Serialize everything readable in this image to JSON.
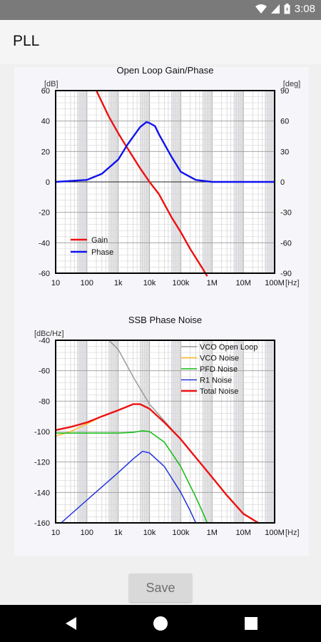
{
  "status_bar": {
    "time": "3:08",
    "icons": [
      "wifi-icon",
      "signal-icon",
      "battery-icon"
    ]
  },
  "app": {
    "title": "PLL"
  },
  "save_label": "Save",
  "nav_bar": {
    "icons": [
      "back-icon",
      "home-icon",
      "recents-icon"
    ]
  },
  "colors": {
    "gain": "#ee1111",
    "phase": "#1111ee",
    "vco_open_loop": "#999999",
    "vco_noise": "#ffbb22",
    "pfd_noise": "#11bb11",
    "r1_noise": "#2233dd",
    "total_noise": "#ee1111"
  },
  "chart_data": [
    {
      "type": "line",
      "title": "Open Loop Gain/Phase",
      "ylabel": "[dB]",
      "y2label": "[deg]",
      "xunit": "[Hz]",
      "xscale": "log",
      "xlim": [
        10,
        100000000
      ],
      "ylim": [
        -60,
        60
      ],
      "y2lim": [
        -90,
        90
      ],
      "x_ticks": [
        "10",
        "100",
        "1k",
        "10k",
        "100k",
        "1M",
        "10M",
        "100M"
      ],
      "y_ticks": [
        "60",
        "40",
        "20",
        "0",
        "-20",
        "-40",
        "-60"
      ],
      "y2_ticks": [
        "90",
        "60",
        "30",
        "0",
        "-30",
        "-60",
        "-90"
      ],
      "grid": true,
      "legend": "bottom-left",
      "series": [
        {
          "name": "Gain",
          "axis": "left",
          "x": [
            200,
            500,
            1000,
            2000,
            5000,
            10000,
            20000,
            50000,
            100000,
            200000,
            500000,
            700000
          ],
          "y": [
            60,
            43,
            32,
            22,
            9,
            0,
            -8,
            -23,
            -33,
            -44,
            -57,
            -62
          ]
        },
        {
          "name": "Phase",
          "axis": "right",
          "x": [
            10,
            100,
            300,
            1000,
            2000,
            5000,
            8000,
            10000,
            15000,
            20000,
            50000,
            100000,
            300000,
            1000000,
            100000000
          ],
          "y": [
            0,
            2,
            8,
            22,
            37,
            54,
            59,
            58,
            55,
            47,
            25,
            10,
            2,
            0,
            0
          ]
        }
      ]
    },
    {
      "type": "line",
      "title": "SSB Phase Noise",
      "ylabel": "[dBc/Hz]",
      "xunit": "[Hz]",
      "xscale": "log",
      "xlim": [
        10,
        100000000
      ],
      "ylim": [
        -160,
        -40
      ],
      "x_ticks": [
        "10",
        "100",
        "1k",
        "10k",
        "100k",
        "1M",
        "10M",
        "100M"
      ],
      "y_ticks": [
        "-40",
        "-60",
        "-80",
        "-100",
        "-120",
        "-140",
        "-160"
      ],
      "grid": true,
      "legend": "top-right",
      "series": [
        {
          "name": "VCO Open Loop",
          "x": [
            500,
            1000,
            3000,
            10000,
            30000,
            100000,
            300000,
            1000000,
            3000000,
            10000000,
            30000000
          ],
          "y": [
            -40,
            -46,
            -64,
            -82,
            -93,
            -105,
            -117,
            -130,
            -142,
            -154,
            -160
          ]
        },
        {
          "name": "VCO Noise",
          "x": [
            10,
            30,
            100,
            300,
            1000,
            3000,
            5000,
            10000,
            30000,
            100000,
            300000,
            1000000,
            3000000,
            10000000,
            30000000
          ],
          "y": [
            -103,
            -100,
            -95,
            -90,
            -86,
            -82,
            -82,
            -85,
            -94,
            -105,
            -117,
            -130,
            -142,
            -154,
            -160
          ]
        },
        {
          "name": "PFD Noise",
          "x": [
            10,
            100,
            1000,
            3000,
            6000,
            10000,
            30000,
            100000,
            300000,
            500000,
            700000
          ],
          "y": [
            -101,
            -101,
            -101,
            -100.5,
            -99.5,
            -100,
            -107,
            -123,
            -143,
            -153,
            -160
          ]
        },
        {
          "name": "R1 Noise",
          "x": [
            15,
            100,
            1000,
            3000,
            6000,
            10000,
            30000,
            100000,
            200000,
            300000
          ],
          "y": [
            -160,
            -145,
            -127,
            -118,
            -113,
            -114,
            -123,
            -140,
            -152,
            -160
          ]
        },
        {
          "name": "Total Noise",
          "x": [
            10,
            30,
            100,
            300,
            1000,
            3000,
            5000,
            10000,
            30000,
            100000,
            300000,
            1000000,
            3000000,
            10000000,
            30000000
          ],
          "y": [
            -99,
            -97,
            -94,
            -90,
            -86,
            -82,
            -82,
            -85,
            -94,
            -105,
            -117,
            -130,
            -142,
            -154,
            -160
          ]
        }
      ]
    }
  ]
}
